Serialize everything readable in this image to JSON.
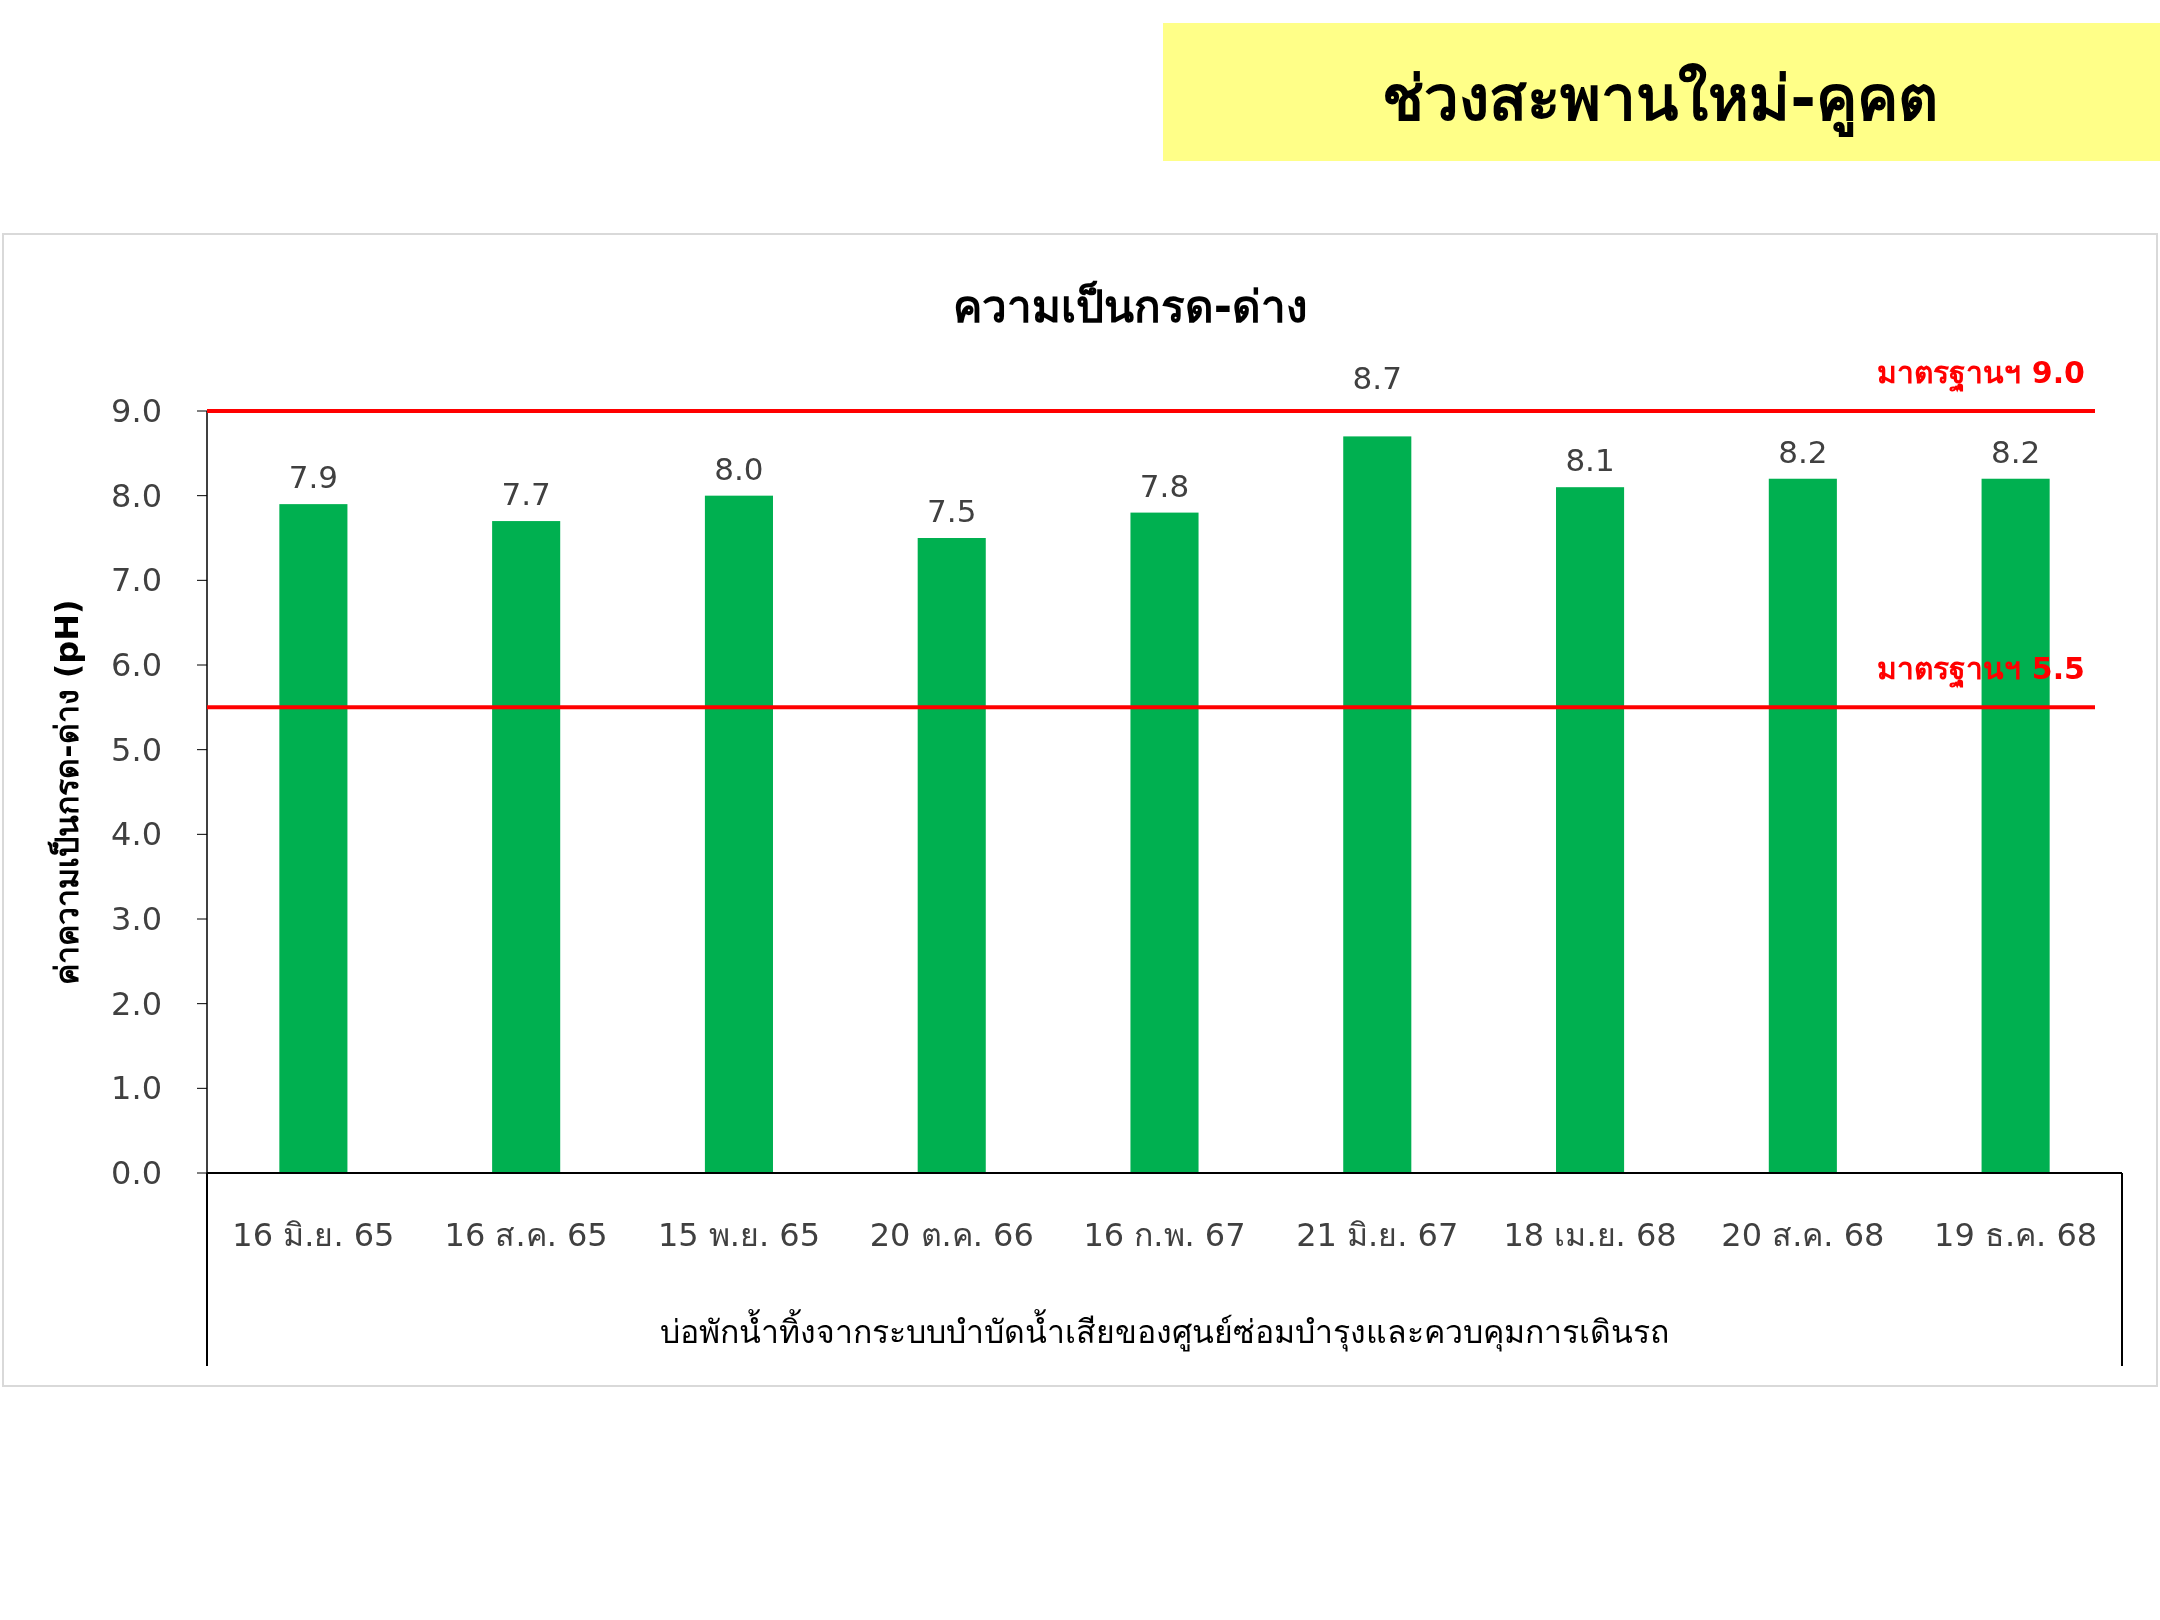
{
  "chart_data": {
    "type": "bar",
    "title": "ช่วงสะพานใหม่-คูคต",
    "subtitle": "ความเป็นกรด-ด่าง",
    "xlabel": "บ่อพักน้ำทิ้งจากระบบบำบัดน้ำเสียของศูนย์ซ่อมบำรุงและควบคุมการเดินรถ",
    "ylabel": "ค่าความเป็นกรด-ด่าง (pH)",
    "categories": [
      "16 มิ.ย. 65",
      "16 ส.ค. 65",
      "15 พ.ย. 65",
      "20 ต.ค. 66",
      "16 ก.พ. 67",
      "21 มิ.ย. 67",
      "18 เม.ย. 68",
      "20 ส.ค. 68",
      "19 ธ.ค. 68"
    ],
    "values": [
      7.9,
      7.7,
      8.0,
      7.5,
      7.8,
      8.7,
      8.1,
      8.2,
      8.2
    ],
    "color": "#00b050",
    "value_labels": [
      "7.9",
      "7.7",
      "8.0",
      "7.5",
      "7.8",
      "8.7",
      "8.1",
      "8.2",
      "8.2"
    ],
    "ylim": [
      0,
      9
    ],
    "yticks": [
      {
        "value": 0,
        "label": "0.0"
      },
      {
        "value": 1,
        "label": "1.0"
      },
      {
        "value": 2,
        "label": "2.0"
      },
      {
        "value": 3,
        "label": "3.0"
      },
      {
        "value": 4,
        "label": "4.0"
      },
      {
        "value": 5,
        "label": "5.0"
      },
      {
        "value": 6,
        "label": "6.0"
      },
      {
        "value": 7,
        "label": "7.0"
      },
      {
        "value": 8,
        "label": "8.0"
      },
      {
        "value": 9,
        "label": "9.0"
      }
    ],
    "ref_lines": [
      {
        "axis": "y",
        "value": 9.0,
        "label": "มาตรฐานฯ 9.0",
        "color": "#ff0000"
      },
      {
        "axis": "y",
        "value": 5.5,
        "label": "มาตรฐานฯ 5.5",
        "color": "#ff0000"
      }
    ],
    "grid": false
  }
}
